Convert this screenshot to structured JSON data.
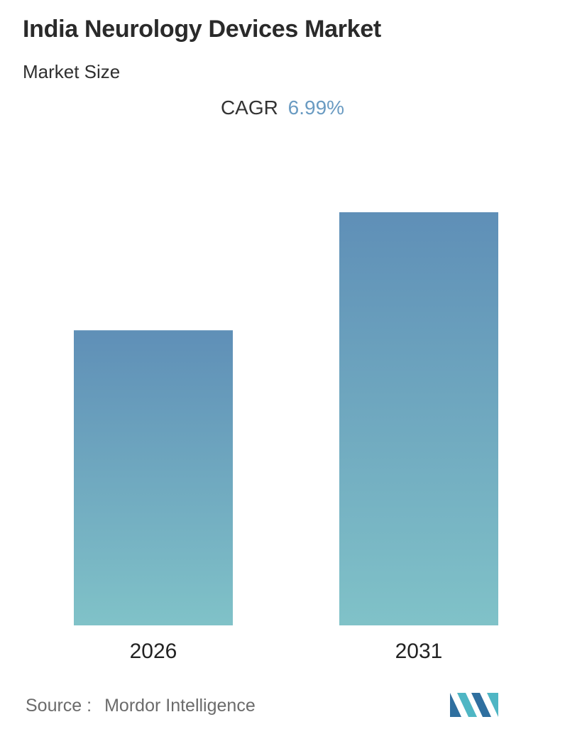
{
  "header": {
    "title": "India Neurology Devices Market",
    "subtitle": "Market Size",
    "cagr_label": "CAGR",
    "cagr_value": "6.99%"
  },
  "chart_data": {
    "type": "bar",
    "categories": [
      "2026",
      "2031"
    ],
    "values": [
      1.0,
      1.4
    ],
    "value_note_hidden": true,
    "title": "",
    "xlabel": "",
    "ylabel": "",
    "grid": false,
    "colors": {
      "bar_top": "#5f8fb7",
      "bar_bottom": "#80c2c8"
    }
  },
  "footer": {
    "source_label": "Source :",
    "source_name": "Mordor Intelligence",
    "logo_colors": [
      "#2f6f9f",
      "#4fb6c4"
    ]
  }
}
